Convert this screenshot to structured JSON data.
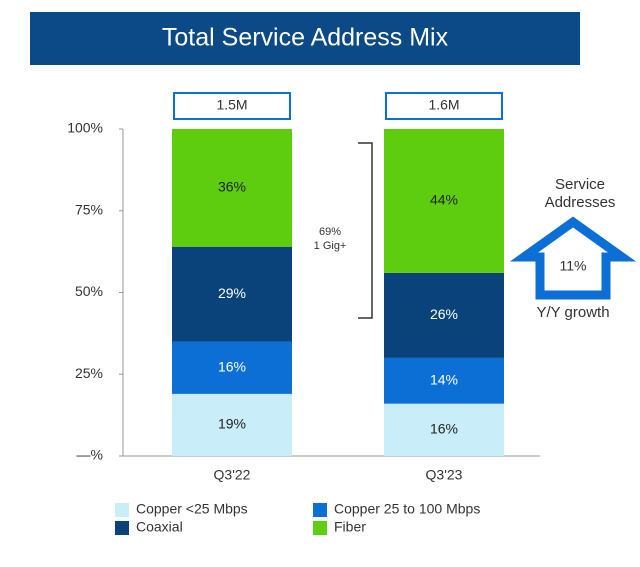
{
  "chart_data": {
    "type": "stacked_bar",
    "title": "Total Service Address Mix",
    "categories": [
      "Q3'22",
      "Q3'23"
    ],
    "series": [
      {
        "name": "Copper <25 Mbps",
        "color": "#c9eefa",
        "values": [
          19,
          16
        ],
        "value_labels": [
          "19%",
          "16%"
        ]
      },
      {
        "name": "Copper 25 to 100 Mbps",
        "color": "#0b6fd6",
        "values": [
          16,
          14
        ],
        "value_labels": [
          "16%",
          "14%"
        ]
      },
      {
        "name": "Coaxial",
        "color": "#0a4379",
        "values": [
          29,
          26
        ],
        "value_labels": [
          "29%",
          "26%"
        ]
      },
      {
        "name": "Fiber",
        "color": "#5ecc0f",
        "values": [
          36,
          44
        ],
        "value_labels": [
          "36%",
          "44%"
        ]
      }
    ],
    "totals": {
      "values": [
        1500000,
        1600000
      ],
      "value_labels": [
        "1.5M",
        "1.6M"
      ]
    },
    "ylim": [
      0,
      100
    ],
    "yticks": [
      {
        "value": 0,
        "label": "—%"
      },
      {
        "value": 25,
        "label": "25%"
      },
      {
        "value": 50,
        "label": "50%"
      },
      {
        "value": 75,
        "label": "75%"
      },
      {
        "value": 100,
        "label": "100%"
      }
    ],
    "grid": false,
    "annotations": {
      "bracket": [
        "69%",
        "1 Gig+"
      ],
      "growth": {
        "heading": [
          "Service",
          "Addresses"
        ],
        "value": "11%",
        "caption": "Y/Y growth"
      }
    }
  }
}
